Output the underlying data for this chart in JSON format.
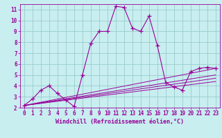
{
  "xlabel": "Windchill (Refroidissement éolien,°C)",
  "background_color": "#c8eef0",
  "grid_color": "#99cccc",
  "line_color": "#990099",
  "series_main": {
    "x": [
      0,
      1,
      2,
      3,
      4,
      5,
      6,
      7,
      8,
      9,
      10,
      11,
      12,
      13,
      14,
      15,
      16,
      17,
      18,
      19,
      20,
      21,
      22,
      23
    ],
    "y": [
      2.2,
      2.8,
      3.6,
      4.0,
      3.3,
      2.7,
      2.1,
      5.0,
      7.9,
      9.0,
      9.0,
      11.3,
      11.2,
      9.3,
      9.0,
      10.4,
      7.7,
      4.3,
      3.9,
      3.6,
      5.3,
      5.6,
      5.7,
      5.6
    ]
  },
  "series_lines": [
    {
      "x": [
        0,
        23
      ],
      "y": [
        2.2,
        5.6
      ]
    },
    {
      "x": [
        0,
        23
      ],
      "y": [
        2.2,
        5.0
      ]
    },
    {
      "x": [
        0,
        23
      ],
      "y": [
        2.2,
        4.7
      ]
    },
    {
      "x": [
        0,
        23
      ],
      "y": [
        2.2,
        4.4
      ]
    }
  ],
  "xlim": [
    -0.5,
    23.5
  ],
  "ylim": [
    2,
    11.5
  ],
  "yticks": [
    2,
    3,
    4,
    5,
    6,
    7,
    8,
    9,
    10,
    11
  ],
  "xticks": [
    0,
    1,
    2,
    3,
    4,
    5,
    6,
    7,
    8,
    9,
    10,
    11,
    12,
    13,
    14,
    15,
    16,
    17,
    18,
    19,
    20,
    21,
    22,
    23
  ],
  "tick_fontsize": 5.5,
  "xlabel_fontsize": 6.0
}
